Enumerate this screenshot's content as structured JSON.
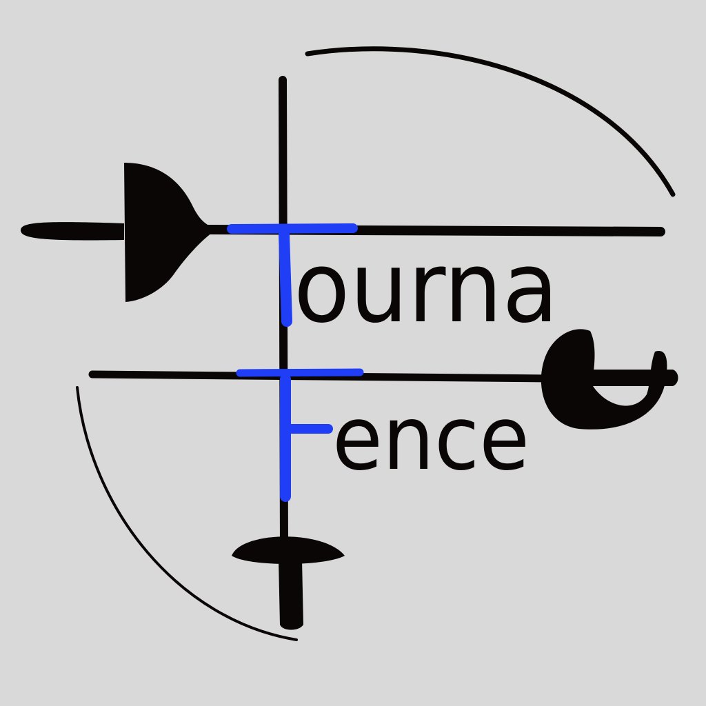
{
  "logo": {
    "word_top_initial": "T",
    "word_top_rest": "ourna",
    "word_bottom_initial": "F",
    "word_bottom_rest": "ence"
  },
  "colors": {
    "background": "#d9d9d9",
    "ink": "#0a0606",
    "accent": "#1f3ef5"
  }
}
